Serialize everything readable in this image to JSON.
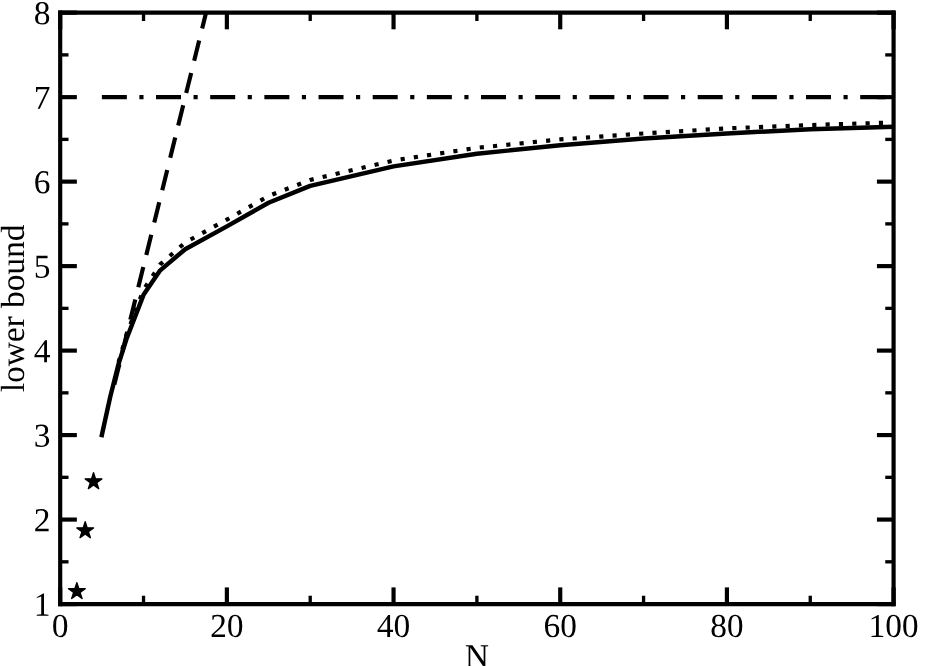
{
  "chart_data": {
    "type": "line",
    "xlabel": "N",
    "ylabel": "lower bound",
    "xlim": [
      0,
      100
    ],
    "ylim": [
      1,
      8
    ],
    "xticks": [
      0,
      20,
      40,
      60,
      80,
      100
    ],
    "yticks": [
      1,
      2,
      3,
      4,
      5,
      6,
      7,
      8
    ],
    "grid": false,
    "series": [
      {
        "line_style": "solid",
        "color": "#000000",
        "x": [
          5,
          6,
          7,
          8,
          10,
          12,
          15,
          20,
          25,
          30,
          40,
          50,
          60,
          70,
          80,
          90,
          100
        ],
        "values": [
          3.0,
          3.45,
          3.84,
          4.15,
          4.66,
          4.95,
          5.2,
          5.47,
          5.75,
          5.95,
          6.18,
          6.33,
          6.43,
          6.51,
          6.57,
          6.62,
          6.65
        ]
      },
      {
        "line_style": "dotted",
        "color": "#000000",
        "x": [
          7,
          8,
          10,
          12,
          15,
          20,
          25,
          30,
          40,
          50,
          60,
          70,
          80,
          90,
          100
        ],
        "values": [
          3.86,
          4.2,
          4.72,
          5.02,
          5.28,
          5.55,
          5.83,
          6.02,
          6.25,
          6.4,
          6.5,
          6.57,
          6.63,
          6.67,
          6.7
        ]
      },
      {
        "line_style": "dashed",
        "color": "#000000",
        "x": [
          6.5,
          17.5
        ],
        "values": [
          3.6,
          8
        ]
      },
      {
        "line_style": "dashdot",
        "color": "#000000",
        "x": [
          5,
          100
        ],
        "values": [
          7,
          7
        ]
      },
      {
        "type": "scatter",
        "marker": "star",
        "color": "#000000",
        "x": [
          2,
          3,
          4
        ],
        "values": [
          1.15,
          1.87,
          2.45
        ]
      }
    ]
  }
}
